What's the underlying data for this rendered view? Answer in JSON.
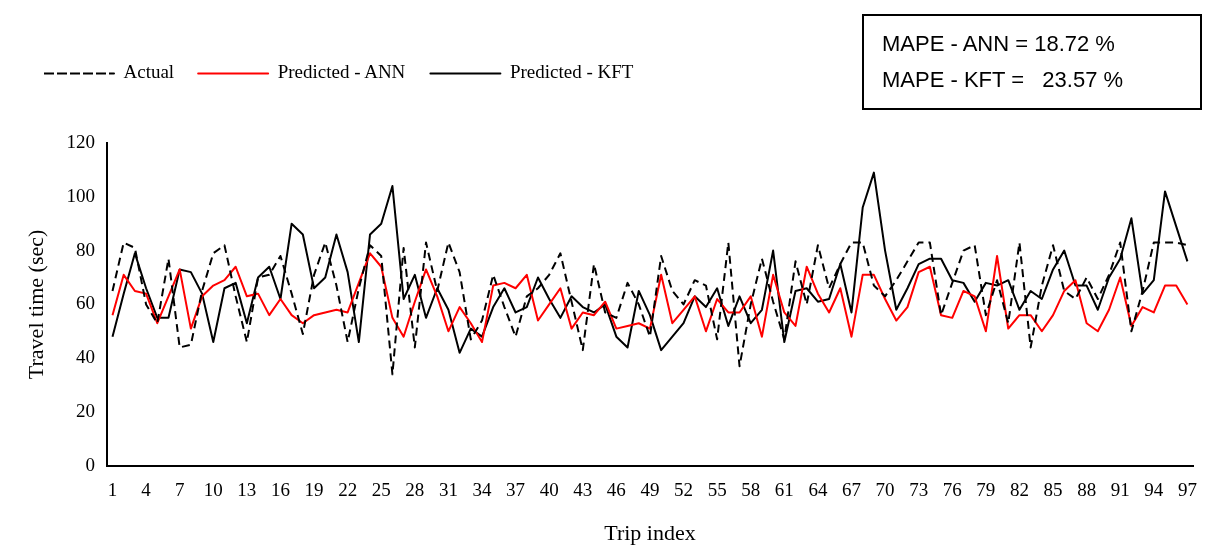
{
  "chart_data": {
    "type": "line",
    "xlabel": "Trip index",
    "ylabel": "Travel time (sec)",
    "categories": [
      "1",
      null,
      null,
      "4",
      null,
      null,
      "7",
      null,
      null,
      "10",
      null,
      null,
      "13",
      null,
      null,
      "16",
      null,
      null,
      "19",
      null,
      null,
      "22",
      null,
      null,
      "25",
      null,
      null,
      "28",
      null,
      null,
      "31",
      null,
      null,
      "34",
      null,
      null,
      "37",
      null,
      null,
      "40",
      null,
      null,
      "43",
      null,
      null,
      "46",
      null,
      null,
      "49",
      null,
      null,
      "52",
      null,
      null,
      "55",
      null,
      null,
      "58",
      null,
      null,
      "61",
      null,
      null,
      "64",
      null,
      null,
      "67",
      null,
      null,
      "70",
      null,
      null,
      "73",
      null,
      null,
      "76",
      null,
      null,
      "79",
      null,
      null,
      "82",
      null,
      null,
      "85",
      null,
      null,
      "88",
      null,
      null,
      "91",
      null,
      null,
      "94",
      null,
      null,
      "97"
    ],
    "series": [
      {
        "name": "Actual",
        "color": "#000000",
        "line_style": "dashed",
        "values": [
          65,
          83,
          81,
          60,
          53,
          77,
          44,
          45,
          65,
          79,
          82,
          63,
          46,
          70,
          71,
          78,
          64,
          49,
          71,
          83,
          67,
          46,
          66,
          82,
          78,
          34,
          81,
          44,
          83,
          65,
          83,
          72,
          47,
          54,
          71,
          59,
          48,
          63,
          66,
          71,
          79,
          61,
          43,
          75,
          57,
          55,
          68,
          60,
          48,
          78,
          65,
          60,
          69,
          67,
          47,
          83,
          37,
          60,
          77,
          61,
          47,
          76,
          60,
          82,
          66,
          75,
          83,
          83,
          67,
          63,
          69,
          76,
          83,
          83,
          56,
          68,
          80,
          82,
          56,
          69,
          53,
          83,
          44,
          67,
          82,
          65,
          62,
          70,
          62,
          71,
          83,
          50,
          65,
          83,
          83,
          83,
          82
        ]
      },
      {
        "name": "Predicted - ANN",
        "color": "#ff0000",
        "line_style": "solid",
        "values": [
          56,
          71,
          65,
          64,
          53,
          63,
          73,
          51,
          63,
          67,
          69,
          74,
          63,
          64,
          56,
          62,
          56,
          53,
          56,
          57,
          58,
          57,
          68,
          79,
          74,
          55,
          48,
          61,
          73,
          63,
          50,
          59,
          53,
          46,
          67,
          68,
          66,
          71,
          54,
          60,
          66,
          51,
          57,
          56,
          61,
          51,
          52,
          53,
          51,
          71,
          53,
          58,
          63,
          50,
          62,
          57,
          57,
          63,
          48,
          71,
          57,
          52,
          74,
          64,
          57,
          66,
          48,
          71,
          71,
          62,
          54,
          59,
          72,
          74,
          56,
          55,
          65,
          63,
          50,
          78,
          51,
          56,
          56,
          50,
          56,
          65,
          69,
          53,
          50,
          58,
          70,
          52,
          59,
          57,
          67,
          67,
          60
        ]
      },
      {
        "name": "Predicted - KFT",
        "color": "#000000",
        "line_style": "solid",
        "values": [
          48,
          64,
          79,
          66,
          55,
          55,
          73,
          72,
          64,
          46,
          66,
          68,
          53,
          70,
          74,
          62,
          90,
          86,
          66,
          70,
          86,
          72,
          46,
          86,
          90,
          104,
          62,
          71,
          55,
          66,
          58,
          42,
          51,
          48,
          59,
          66,
          57,
          59,
          70,
          62,
          55,
          63,
          59,
          57,
          60,
          48,
          44,
          65,
          56,
          43,
          48,
          53,
          63,
          59,
          66,
          52,
          63,
          53,
          58,
          80,
          46,
          65,
          66,
          61,
          62,
          75,
          57,
          96,
          109,
          80,
          58,
          66,
          75,
          77,
          77,
          69,
          68,
          61,
          68,
          67,
          69,
          58,
          65,
          62,
          73,
          80,
          67,
          67,
          58,
          70,
          77,
          92,
          64,
          69,
          102,
          89,
          76
        ]
      }
    ],
    "ylim": [
      0,
      120
    ],
    "yticks": [
      0,
      20,
      40,
      60,
      80,
      100,
      120
    ],
    "grid": false,
    "legend": "top left",
    "marker": "none",
    "annotations": [
      "MAPE - ANN = 18.72 %",
      "MAPE - KFT =   23.57 %"
    ]
  }
}
